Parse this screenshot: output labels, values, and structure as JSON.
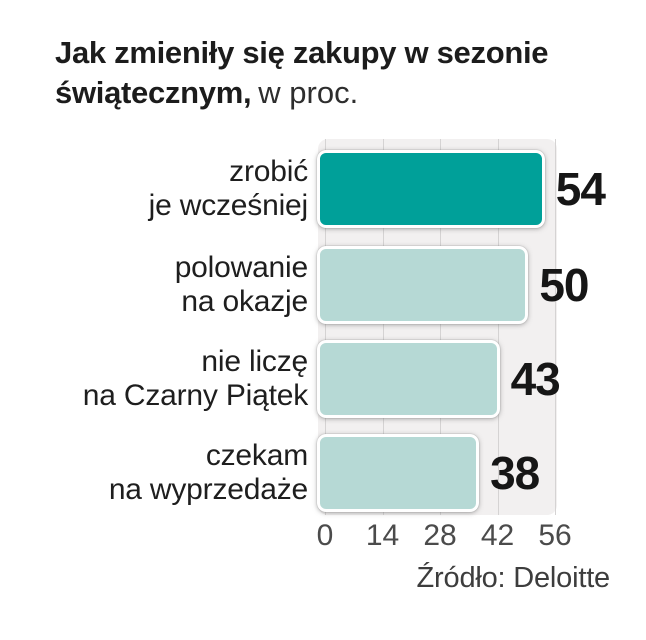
{
  "title": {
    "line1": "Jak zmieniły się zakupy w sezonie",
    "line2_bold": "świątecznym,",
    "line2_rest": "w proc."
  },
  "source": "Źródło: Deloitte",
  "colors": {
    "bar_primary": "#00a099",
    "bar_secondary": "#b6d9d5",
    "bar_border": "#ffffff",
    "plot_bg": "#f2f0f0",
    "gridline": "#d5d3d3",
    "value_text": "#161616",
    "tick_text": "#4b4b4b"
  },
  "chart_data": {
    "type": "bar",
    "orientation": "horizontal",
    "title": "Jak zmieniły się zakupy w sezonie świątecznym",
    "unit": "w proc.",
    "categories": [
      "zrobić je wcześniej",
      "polowanie na okazje",
      "nie liczę na Czarny Piątek",
      "czekam na wyprzedaże"
    ],
    "values": [
      54,
      50,
      43,
      38
    ],
    "xlim": [
      0,
      56
    ],
    "xticks": [
      0,
      14,
      28,
      42,
      56
    ],
    "grid": true,
    "legend": false,
    "source": "Źródło: Deloitte",
    "rows": [
      {
        "label": "zrobić\nje wcześniej",
        "value": 54,
        "highlight": true
      },
      {
        "label": "polowanie\nna okazje",
        "value": 50,
        "highlight": false
      },
      {
        "label": "nie liczę\nna Czarny Piątek",
        "value": 43,
        "highlight": false
      },
      {
        "label": "czekam\nna wyprzedaże",
        "value": 38,
        "highlight": false
      }
    ]
  }
}
